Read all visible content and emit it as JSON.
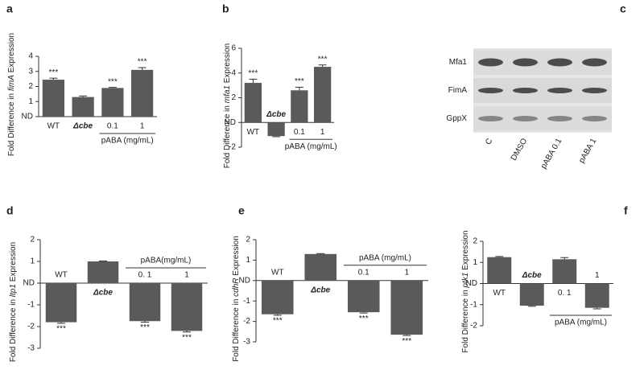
{
  "chart_data": [
    {
      "type": "bar",
      "panel": "a",
      "ylabel": "Fold Difference in fimA Expression",
      "ylabel_italic": "fimA",
      "categories": [
        "WT",
        "Δcbe",
        "0.1",
        "1"
      ],
      "values": [
        2.45,
        1.3,
        1.9,
        3.1
      ],
      "errors": [
        0.1,
        0.07,
        0.04,
        0.15
      ],
      "annotations": [
        "***",
        null,
        "***",
        "***"
      ],
      "group_label": "pABA (mg/mL)",
      "color": "#5a5a5a",
      "ylim": [
        0,
        4
      ],
      "yticks": [
        {
          "value": 0,
          "label": "ND"
        },
        1,
        2,
        3,
        4
      ]
    },
    {
      "type": "bar",
      "panel": "b",
      "ylabel": "Fold Difference in mfa1 Expression",
      "ylabel_italic": "mfa1",
      "categories": [
        "WT",
        "Δcbe",
        "0.1",
        "1"
      ],
      "values": [
        3.2,
        -1.1,
        2.6,
        4.5
      ],
      "errors": [
        0.3,
        0.05,
        0.25,
        0.15
      ],
      "annotations": [
        "***",
        null,
        "***",
        "***"
      ],
      "group_label": "pABA (mg/mL)",
      "color": "#5a5a5a",
      "ylim": [
        -2,
        6
      ],
      "yticks": [
        -2,
        {
          "value": 0,
          "label": "ND"
        },
        2,
        4,
        6
      ]
    },
    {
      "type": "blot",
      "panel": "c",
      "bands": [
        "Mfa1",
        "FimA",
        "GppX"
      ],
      "lanes": [
        "C",
        "DMSO",
        "pABA 0.1",
        "pABA 1"
      ]
    },
    {
      "type": "bar",
      "panel": "d",
      "ylabel": "Fold Difference in ltp1 Expression",
      "ylabel_italic": "ltp1",
      "categories": [
        "WT",
        "Δcbe",
        "0. 1",
        "1"
      ],
      "values": [
        -1.8,
        1.0,
        -1.75,
        -2.2
      ],
      "errors": [
        0.05,
        0.02,
        0.05,
        0.05
      ],
      "annotations": [
        "***",
        null,
        "***",
        "***"
      ],
      "group_label": "pABA(mg/mL)",
      "color": "#5a5a5a",
      "ylim": [
        -3,
        2
      ],
      "yticks": [
        -3,
        -2,
        -1,
        {
          "value": 0,
          "label": "ND"
        },
        1,
        2
      ]
    },
    {
      "type": "bar",
      "panel": "e",
      "ylabel": "Fold Difference in cdhR Expression",
      "ylabel_italic": "cdhR",
      "categories": [
        "WT",
        "Δcbe",
        "0.1",
        "1"
      ],
      "values": [
        -1.65,
        1.3,
        -1.55,
        -2.65
      ],
      "errors": [
        0.05,
        0.02,
        0.04,
        0.04
      ],
      "annotations": [
        "***",
        null,
        "***",
        "***"
      ],
      "group_label": "pABA (mg/mL)",
      "color": "#5a5a5a",
      "ylim": [
        -3,
        2
      ],
      "yticks": [
        -3,
        -2,
        -1,
        {
          "value": 0,
          "label": "ND"
        },
        1,
        2
      ]
    },
    {
      "type": "bar",
      "panel": "f",
      "ylabel": "Fold Difference in ptk1 Expression",
      "ylabel_italic": "ptk1",
      "categories": [
        "WT",
        "Δcbe",
        "0. 1",
        "1"
      ],
      "values": [
        1.25,
        -1.05,
        1.15,
        -1.15
      ],
      "errors": [
        0.03,
        0.03,
        0.08,
        0.05
      ],
      "annotations": [
        null,
        null,
        null,
        null
      ],
      "group_label": "pABA (mg/mL)",
      "color": "#5a5a5a",
      "ylim": [
        -2,
        2
      ],
      "yticks": [
        -2,
        -1,
        {
          "value": 0,
          "label": "ND"
        },
        1,
        2
      ]
    }
  ]
}
